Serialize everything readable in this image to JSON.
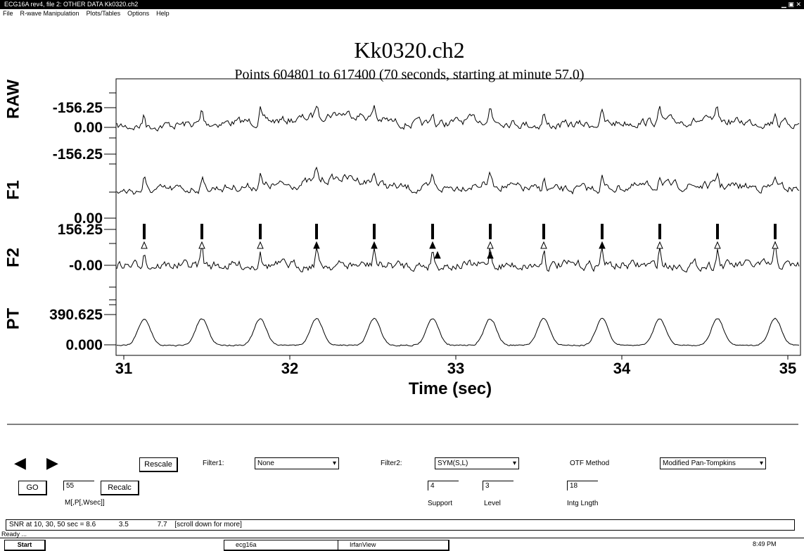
{
  "window": {
    "title": "ECG16A rev4, file 2: OTHER DATA Kk0320.ch2"
  },
  "menu": [
    "File",
    "R-wave Manipulation",
    "Plots/Tables",
    "Options",
    "Help"
  ],
  "plot": {
    "title": "Kk0320.ch2",
    "subtitle": "Points 604801 to 617400 (70 seconds, starting at minute 57.0)",
    "channels": [
      {
        "name": "RAW",
        "labels": [
          "0.00",
          "-156.25"
        ]
      },
      {
        "name": "F1",
        "labels": [
          "0.00",
          "-156.25"
        ]
      },
      {
        "name": "F2",
        "labels": [
          "156.25",
          "-0.00"
        ]
      },
      {
        "name": "PT",
        "labels": [
          "390.625",
          "0.000"
        ]
      }
    ],
    "xticks": [
      "31",
      "32",
      "33",
      "34",
      "35"
    ],
    "xlabel": "Time (sec)"
  },
  "controls": {
    "rescale": "Rescale",
    "filter1_label": "Filter1:",
    "filter1": "None",
    "filter2_label": "Filter2:",
    "filter2": "SYM(S,L)",
    "otf_label": "OTF Method",
    "otf": "Modified Pan-Tompkins",
    "go": "GO",
    "m_value": "55",
    "recalc": "Recalc",
    "m_label": "M[,P[,Wsec]]",
    "support": "4",
    "level": "3",
    "intg": "18",
    "support_label": "Support",
    "level_label": "Level",
    "intg_label": "Intg Lngth"
  },
  "status": {
    "snr": "SNR  at 10, 30, 50 sec  =   8.6",
    "snr2": "3.5",
    "snr3": "7.7",
    "more": "[scroll down for more]",
    "ready": "Ready ..."
  },
  "taskbar": {
    "start": "Start",
    "task1": "ecg16a",
    "task2": "IrfanView",
    "clock": "8:49 PM"
  }
}
